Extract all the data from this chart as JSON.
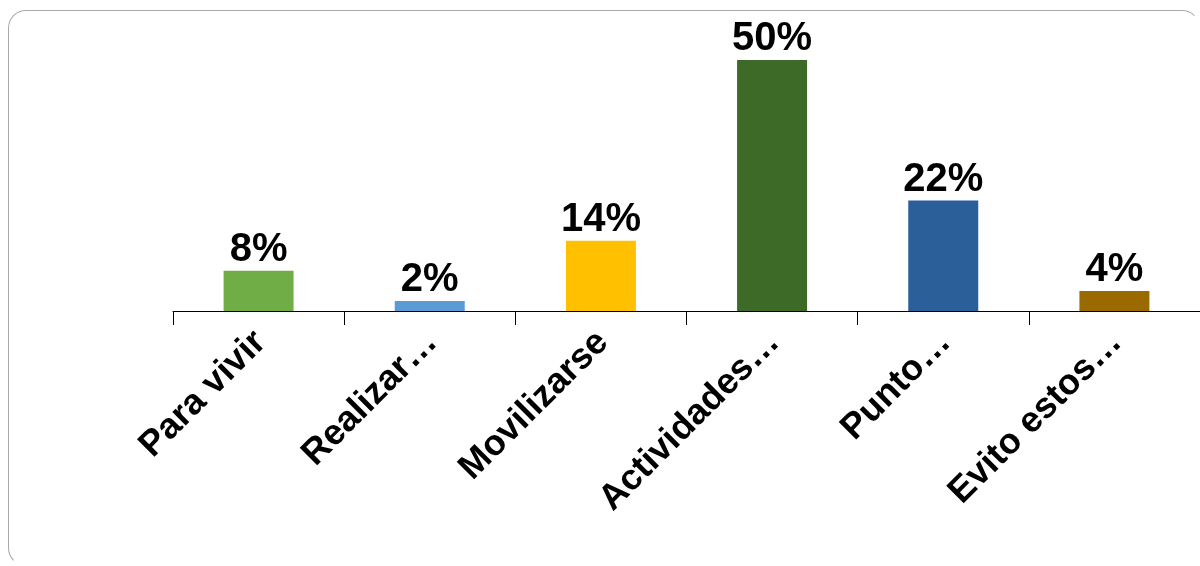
{
  "chart_data": {
    "type": "bar",
    "categories": [
      "Para vivir",
      "Realizar…",
      "Movilizarse",
      "Actividades…",
      "Punto…",
      "Evito estos…"
    ],
    "values": [
      8,
      2,
      14,
      50,
      22,
      4
    ],
    "colors": [
      "#70ad47",
      "#5b9bd5",
      "#ffc000",
      "#3d6b27",
      "#2a5f9a",
      "#9a6a00"
    ],
    "value_labels": [
      "8%",
      "2%",
      "14%",
      "50%",
      "22%",
      "4%"
    ]
  }
}
